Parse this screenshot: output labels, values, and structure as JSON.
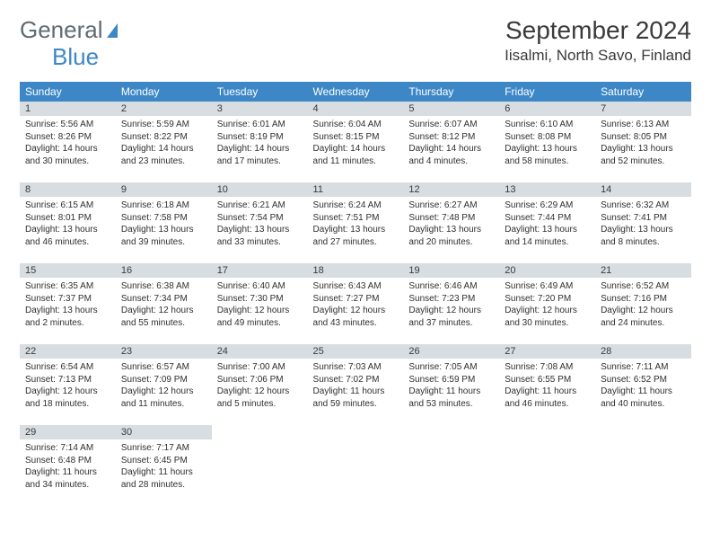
{
  "brand": {
    "part1": "General",
    "part2": "Blue"
  },
  "title": "September 2024",
  "location": "Iisalmi, North Savo, Finland",
  "colors": {
    "header_bg": "#3d87c6",
    "header_fg": "#ffffff",
    "daybar_bg": "#d7dde1",
    "text": "#3a3a3a",
    "page_bg": "#ffffff"
  },
  "weekdays": [
    "Sunday",
    "Monday",
    "Tuesday",
    "Wednesday",
    "Thursday",
    "Friday",
    "Saturday"
  ],
  "cells": [
    {
      "day": "1",
      "sunrise": "Sunrise: 5:56 AM",
      "sunset": "Sunset: 8:26 PM",
      "daylight": "Daylight: 14 hours and 30 minutes."
    },
    {
      "day": "2",
      "sunrise": "Sunrise: 5:59 AM",
      "sunset": "Sunset: 8:22 PM",
      "daylight": "Daylight: 14 hours and 23 minutes."
    },
    {
      "day": "3",
      "sunrise": "Sunrise: 6:01 AM",
      "sunset": "Sunset: 8:19 PM",
      "daylight": "Daylight: 14 hours and 17 minutes."
    },
    {
      "day": "4",
      "sunrise": "Sunrise: 6:04 AM",
      "sunset": "Sunset: 8:15 PM",
      "daylight": "Daylight: 14 hours and 11 minutes."
    },
    {
      "day": "5",
      "sunrise": "Sunrise: 6:07 AM",
      "sunset": "Sunset: 8:12 PM",
      "daylight": "Daylight: 14 hours and 4 minutes."
    },
    {
      "day": "6",
      "sunrise": "Sunrise: 6:10 AM",
      "sunset": "Sunset: 8:08 PM",
      "daylight": "Daylight: 13 hours and 58 minutes."
    },
    {
      "day": "7",
      "sunrise": "Sunrise: 6:13 AM",
      "sunset": "Sunset: 8:05 PM",
      "daylight": "Daylight: 13 hours and 52 minutes."
    },
    {
      "day": "8",
      "sunrise": "Sunrise: 6:15 AM",
      "sunset": "Sunset: 8:01 PM",
      "daylight": "Daylight: 13 hours and 46 minutes."
    },
    {
      "day": "9",
      "sunrise": "Sunrise: 6:18 AM",
      "sunset": "Sunset: 7:58 PM",
      "daylight": "Daylight: 13 hours and 39 minutes."
    },
    {
      "day": "10",
      "sunrise": "Sunrise: 6:21 AM",
      "sunset": "Sunset: 7:54 PM",
      "daylight": "Daylight: 13 hours and 33 minutes."
    },
    {
      "day": "11",
      "sunrise": "Sunrise: 6:24 AM",
      "sunset": "Sunset: 7:51 PM",
      "daylight": "Daylight: 13 hours and 27 minutes."
    },
    {
      "day": "12",
      "sunrise": "Sunrise: 6:27 AM",
      "sunset": "Sunset: 7:48 PM",
      "daylight": "Daylight: 13 hours and 20 minutes."
    },
    {
      "day": "13",
      "sunrise": "Sunrise: 6:29 AM",
      "sunset": "Sunset: 7:44 PM",
      "daylight": "Daylight: 13 hours and 14 minutes."
    },
    {
      "day": "14",
      "sunrise": "Sunrise: 6:32 AM",
      "sunset": "Sunset: 7:41 PM",
      "daylight": "Daylight: 13 hours and 8 minutes."
    },
    {
      "day": "15",
      "sunrise": "Sunrise: 6:35 AM",
      "sunset": "Sunset: 7:37 PM",
      "daylight": "Daylight: 13 hours and 2 minutes."
    },
    {
      "day": "16",
      "sunrise": "Sunrise: 6:38 AM",
      "sunset": "Sunset: 7:34 PM",
      "daylight": "Daylight: 12 hours and 55 minutes."
    },
    {
      "day": "17",
      "sunrise": "Sunrise: 6:40 AM",
      "sunset": "Sunset: 7:30 PM",
      "daylight": "Daylight: 12 hours and 49 minutes."
    },
    {
      "day": "18",
      "sunrise": "Sunrise: 6:43 AM",
      "sunset": "Sunset: 7:27 PM",
      "daylight": "Daylight: 12 hours and 43 minutes."
    },
    {
      "day": "19",
      "sunrise": "Sunrise: 6:46 AM",
      "sunset": "Sunset: 7:23 PM",
      "daylight": "Daylight: 12 hours and 37 minutes."
    },
    {
      "day": "20",
      "sunrise": "Sunrise: 6:49 AM",
      "sunset": "Sunset: 7:20 PM",
      "daylight": "Daylight: 12 hours and 30 minutes."
    },
    {
      "day": "21",
      "sunrise": "Sunrise: 6:52 AM",
      "sunset": "Sunset: 7:16 PM",
      "daylight": "Daylight: 12 hours and 24 minutes."
    },
    {
      "day": "22",
      "sunrise": "Sunrise: 6:54 AM",
      "sunset": "Sunset: 7:13 PM",
      "daylight": "Daylight: 12 hours and 18 minutes."
    },
    {
      "day": "23",
      "sunrise": "Sunrise: 6:57 AM",
      "sunset": "Sunset: 7:09 PM",
      "daylight": "Daylight: 12 hours and 11 minutes."
    },
    {
      "day": "24",
      "sunrise": "Sunrise: 7:00 AM",
      "sunset": "Sunset: 7:06 PM",
      "daylight": "Daylight: 12 hours and 5 minutes."
    },
    {
      "day": "25",
      "sunrise": "Sunrise: 7:03 AM",
      "sunset": "Sunset: 7:02 PM",
      "daylight": "Daylight: 11 hours and 59 minutes."
    },
    {
      "day": "26",
      "sunrise": "Sunrise: 7:05 AM",
      "sunset": "Sunset: 6:59 PM",
      "daylight": "Daylight: 11 hours and 53 minutes."
    },
    {
      "day": "27",
      "sunrise": "Sunrise: 7:08 AM",
      "sunset": "Sunset: 6:55 PM",
      "daylight": "Daylight: 11 hours and 46 minutes."
    },
    {
      "day": "28",
      "sunrise": "Sunrise: 7:11 AM",
      "sunset": "Sunset: 6:52 PM",
      "daylight": "Daylight: 11 hours and 40 minutes."
    },
    {
      "day": "29",
      "sunrise": "Sunrise: 7:14 AM",
      "sunset": "Sunset: 6:48 PM",
      "daylight": "Daylight: 11 hours and 34 minutes."
    },
    {
      "day": "30",
      "sunrise": "Sunrise: 7:17 AM",
      "sunset": "Sunset: 6:45 PM",
      "daylight": "Daylight: 11 hours and 28 minutes."
    },
    {
      "empty": true
    },
    {
      "empty": true
    },
    {
      "empty": true
    },
    {
      "empty": true
    },
    {
      "empty": true
    }
  ]
}
